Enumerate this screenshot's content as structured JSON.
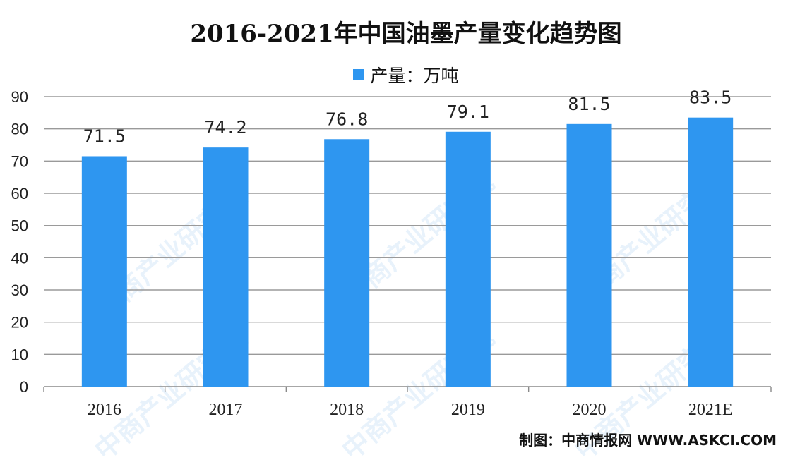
{
  "chart_data": {
    "type": "bar",
    "title": "2016-2021年中国油墨产量变化趋势图",
    "categories": [
      "2016",
      "2017",
      "2018",
      "2019",
      "2020",
      "2021E"
    ],
    "series": [
      {
        "name": "产量：万吨",
        "values": [
          71.5,
          74.2,
          76.8,
          79.1,
          81.5,
          83.5
        ]
      }
    ],
    "ylim": [
      0,
      90
    ],
    "yticks": [
      0,
      10,
      20,
      30,
      40,
      50,
      60,
      70,
      80,
      90
    ],
    "grid": true,
    "legend_position": "top-center",
    "bar_color": "#2e96f0"
  },
  "source": "制图：中商情报网 WWW.ASKCI.COM",
  "watermark": "中商产业研究院"
}
